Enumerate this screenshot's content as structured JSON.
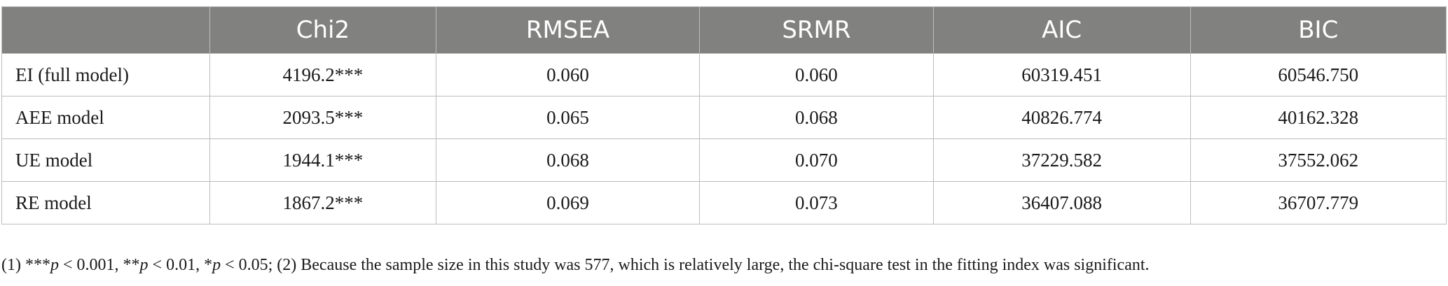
{
  "table": {
    "headers": [
      "",
      "Chi2",
      "RMSEA",
      "SRMR",
      "AIC",
      "BIC"
    ],
    "rows": [
      [
        "EI (full model)",
        "4196.2***",
        "0.060",
        "0.060",
        "60319.451",
        "60546.750"
      ],
      [
        "AEE model",
        "2093.5***",
        "0.065",
        "0.068",
        "40826.774",
        "40162.328"
      ],
      [
        "UE model",
        "1944.1***",
        "0.068",
        "0.070",
        "37229.582",
        "37552.062"
      ],
      [
        "RE model",
        "1867.2***",
        "0.069",
        "0.073",
        "36407.088",
        "36707.779"
      ]
    ]
  },
  "footnote": {
    "p1_prefix": "(1) ***",
    "p_symbol": "p",
    "p1_value": " < 0.001, **",
    "p2_value": " < 0.01, *",
    "p3_value": " < 0.05; (2) Because the sample size in this study was 577, which is relatively large, the chi-square test in the fitting index was significant."
  }
}
